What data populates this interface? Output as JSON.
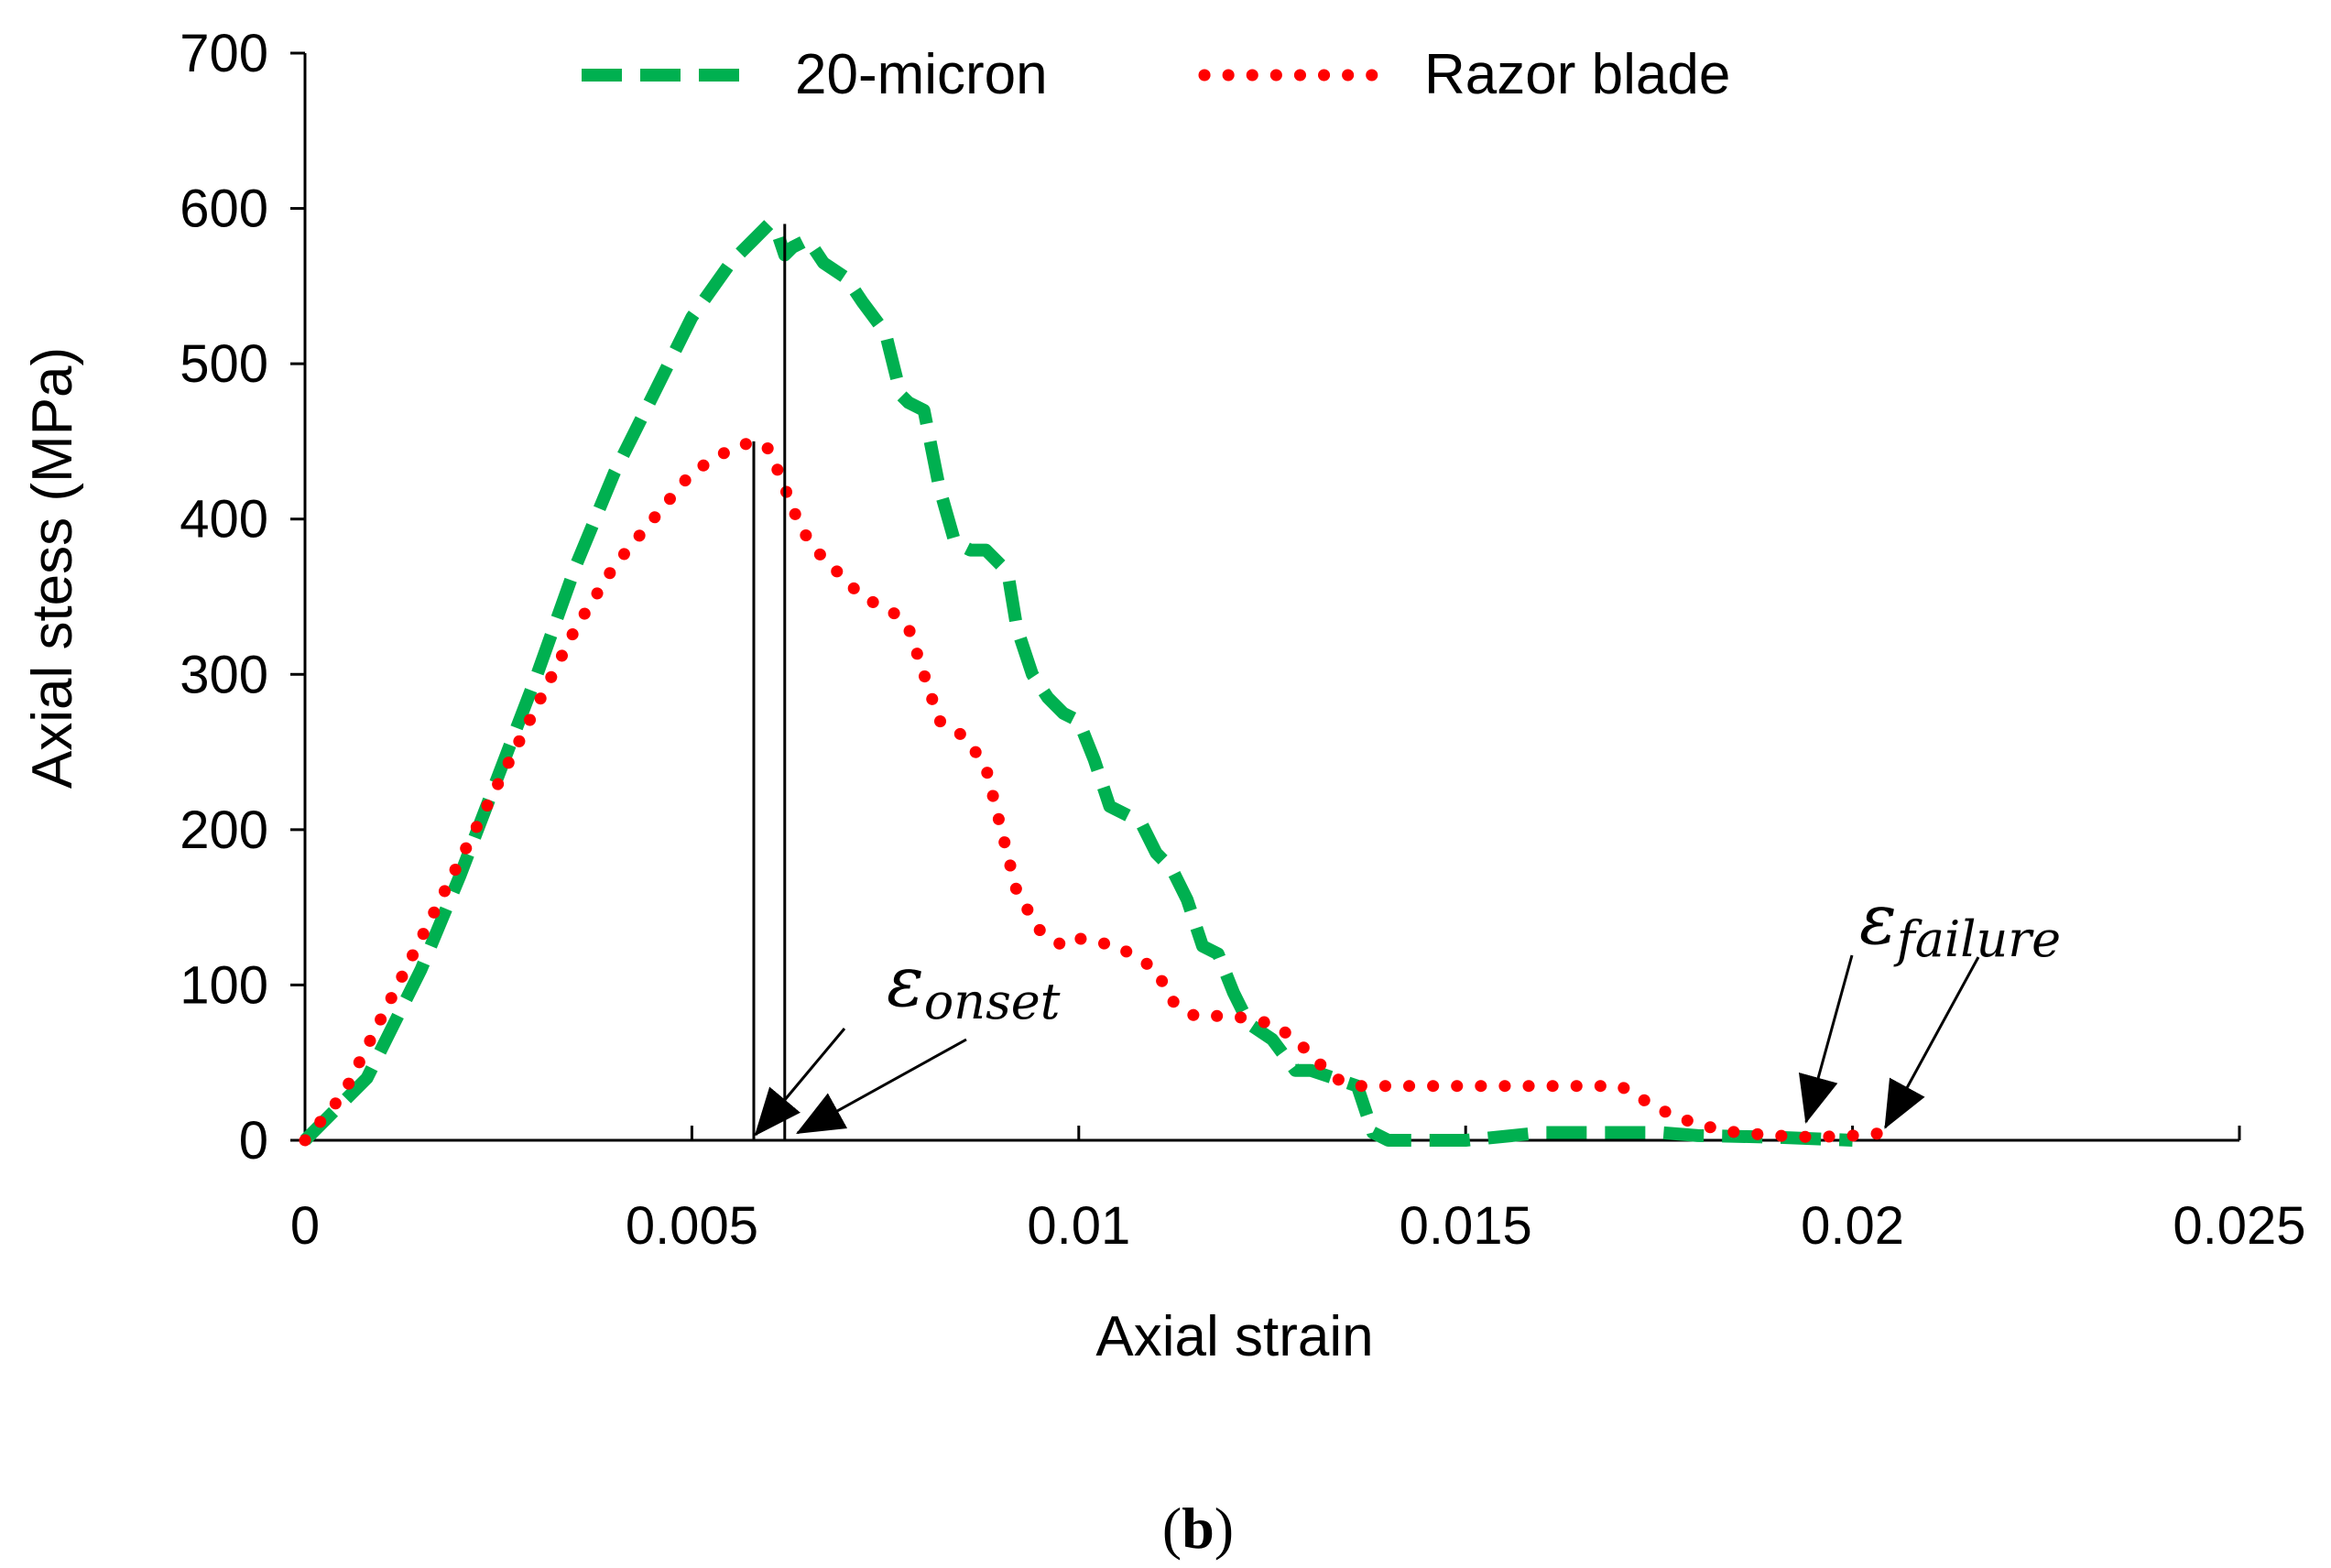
{
  "chart_data": {
    "type": "line",
    "title": "",
    "xlabel": "Axial strain",
    "ylabel": "Axial stess (MPa)",
    "xlim": [
      0,
      0.025
    ],
    "ylim": [
      0,
      700
    ],
    "x_ticks": [
      0,
      0.005,
      0.01,
      0.015,
      0.02,
      0.025
    ],
    "x_tick_labels": [
      "0",
      "0.005",
      "0.01",
      "0.015",
      "0.02",
      "0.025"
    ],
    "y_ticks": [
      0,
      100,
      200,
      300,
      400,
      500,
      600,
      700
    ],
    "y_tick_labels": [
      "0",
      "100",
      "200",
      "300",
      "400",
      "500",
      "600",
      "700"
    ],
    "grid": false,
    "legend_position": "top",
    "series": [
      {
        "name": "20-micron",
        "style": "dashed",
        "color": "#00b050",
        "x": [
          0,
          0.0008,
          0.0015,
          0.002,
          0.0025,
          0.003,
          0.0035,
          0.004,
          0.0045,
          0.005,
          0.0055,
          0.0058,
          0.006,
          0.0061,
          0.0062,
          0.0063,
          0.0065,
          0.0067,
          0.007,
          0.0072,
          0.0075,
          0.0077,
          0.0078,
          0.008,
          0.0082,
          0.0084,
          0.0086,
          0.0088,
          0.009,
          0.0091,
          0.0092,
          0.0094,
          0.0096,
          0.0098,
          0.01,
          0.0102,
          0.0104,
          0.0106,
          0.0108,
          0.011,
          0.0112,
          0.0114,
          0.0116,
          0.0118,
          0.012,
          0.0122,
          0.0125,
          0.0128,
          0.013,
          0.0133,
          0.0136,
          0.0138,
          0.014,
          0.0145,
          0.015,
          0.016,
          0.017,
          0.0175,
          0.018,
          0.019,
          0.02
        ],
        "y": [
          0,
          40,
          110,
          170,
          235,
          300,
          370,
          430,
          480,
          530,
          565,
          580,
          590,
          585,
          570,
          575,
          580,
          565,
          555,
          540,
          520,
          480,
          475,
          470,
          420,
          385,
          380,
          380,
          370,
          360,
          330,
          300,
          285,
          275,
          270,
          245,
          215,
          210,
          205,
          185,
          175,
          155,
          125,
          120,
          95,
          75,
          65,
          45,
          45,
          40,
          35,
          5,
          0,
          0,
          0,
          5,
          5,
          5,
          3,
          2,
          0
        ]
      },
      {
        "name": "Razor blade",
        "style": "dotted",
        "color": "#ff0000",
        "x": [
          0,
          0.0005,
          0.001,
          0.0015,
          0.002,
          0.0025,
          0.003,
          0.0035,
          0.004,
          0.0045,
          0.005,
          0.0055,
          0.0058,
          0.006,
          0.0062,
          0.0064,
          0.0066,
          0.0068,
          0.007,
          0.0072,
          0.0074,
          0.0076,
          0.0078,
          0.008,
          0.0082,
          0.0084,
          0.0086,
          0.0088,
          0.009,
          0.0092,
          0.0095,
          0.0098,
          0.01,
          0.0105,
          0.011,
          0.0112,
          0.0115,
          0.012,
          0.0125,
          0.0128,
          0.013,
          0.0133,
          0.0136,
          0.014,
          0.015,
          0.016,
          0.017,
          0.0175,
          0.018,
          0.0185,
          0.019,
          0.0195,
          0.02,
          0.0205
        ],
        "y": [
          0,
          30,
          80,
          130,
          180,
          230,
          280,
          330,
          370,
          400,
          430,
          445,
          450,
          445,
          420,
          395,
          380,
          370,
          360,
          350,
          345,
          340,
          330,
          300,
          270,
          265,
          255,
          240,
          200,
          160,
          135,
          125,
          130,
          125,
          110,
          90,
          80,
          80,
          75,
          65,
          55,
          40,
          35,
          35,
          35,
          35,
          35,
          20,
          10,
          5,
          3,
          2,
          3,
          5
        ]
      }
    ],
    "annotations": {
      "onset": {
        "symbol": "ε",
        "subscript": "onset"
      },
      "failure": {
        "symbol": "ε",
        "subscript": "failure"
      },
      "onset_strains": [
        0.0058,
        0.0062
      ],
      "onset_peaks": [
        450,
        590
      ],
      "failure_strains": [
        0.0194,
        0.0204
      ]
    },
    "panel_label": "(b)"
  }
}
